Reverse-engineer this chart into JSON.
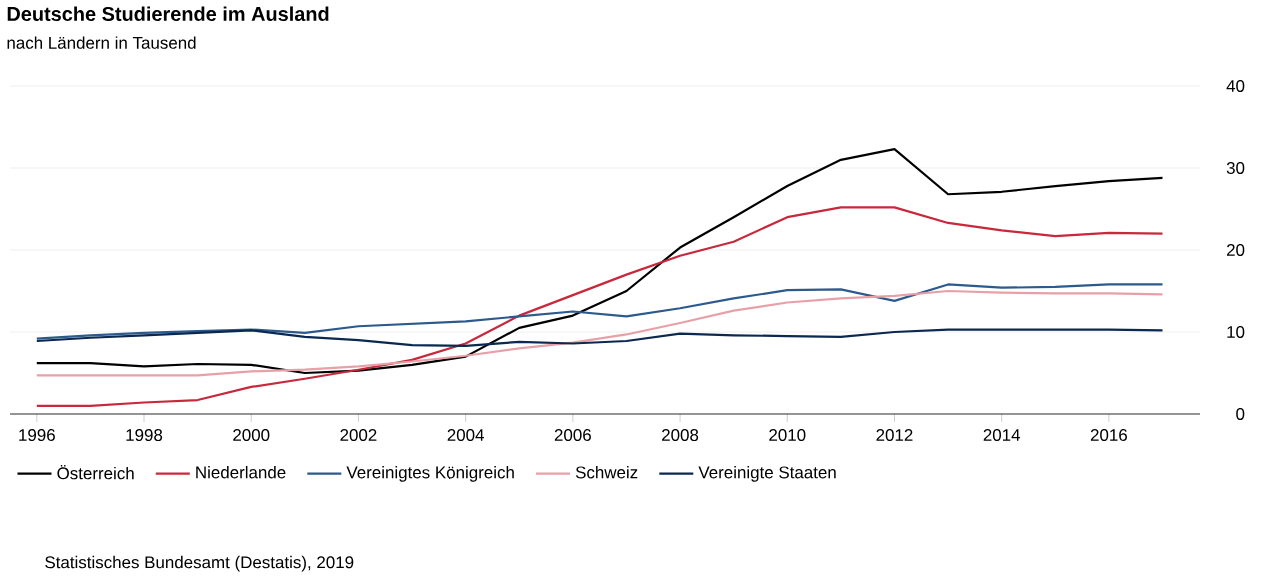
{
  "chart_data": {
    "type": "line",
    "title": "Deutsche Studierende im Ausland",
    "subtitle": "nach Ländern in Tausend",
    "x": [
      1996,
      1997,
      1998,
      1999,
      2000,
      2001,
      2002,
      2003,
      2004,
      2005,
      2006,
      2007,
      2008,
      2009,
      2010,
      2011,
      2012,
      2013,
      2014,
      2015,
      2016,
      2017
    ],
    "series": [
      {
        "name": "Österreich",
        "color": "#000000",
        "values": [
          6.2,
          6.2,
          5.8,
          6.1,
          6.0,
          5.0,
          5.3,
          6.0,
          7.0,
          10.5,
          12.0,
          15.0,
          20.3,
          24.0,
          27.8,
          31.0,
          32.3,
          26.8,
          27.1,
          27.8,
          28.4,
          28.8
        ]
      },
      {
        "name": "Niederlande",
        "color": "#c8283c",
        "values": [
          1.0,
          1.0,
          1.4,
          1.7,
          3.3,
          4.3,
          5.4,
          6.6,
          8.6,
          12.0,
          14.5,
          17.0,
          19.3,
          21.0,
          24.0,
          25.2,
          25.2,
          23.3,
          22.4,
          21.7,
          22.1,
          22.0
        ]
      },
      {
        "name": "Vereinigtes Königreich",
        "color": "#2c5a8c",
        "values": [
          9.2,
          9.6,
          9.9,
          10.1,
          10.3,
          9.9,
          10.7,
          11.0,
          11.3,
          11.9,
          12.5,
          11.9,
          12.9,
          14.1,
          15.1,
          15.2,
          13.8,
          15.8,
          15.4,
          15.5,
          15.8,
          15.8
        ]
      },
      {
        "name": "Schweiz",
        "color": "#e8a0a8",
        "values": [
          4.7,
          4.7,
          4.7,
          4.7,
          5.2,
          5.4,
          5.8,
          6.4,
          7.1,
          8.0,
          8.7,
          9.7,
          11.1,
          12.6,
          13.6,
          14.1,
          14.4,
          15.0,
          14.8,
          14.7,
          14.7,
          14.6
        ]
      },
      {
        "name": "Vereinigte Staaten",
        "color": "#0a2850",
        "values": [
          8.9,
          9.3,
          9.6,
          9.9,
          10.2,
          9.4,
          9.0,
          8.4,
          8.3,
          8.8,
          8.6,
          8.9,
          9.8,
          9.6,
          9.5,
          9.4,
          10.0,
          10.3,
          10.3,
          10.3,
          10.3,
          10.2
        ]
      }
    ],
    "xlim": [
      1995.5,
      2017.7
    ],
    "ylim": [
      0,
      40
    ],
    "xticks": [
      1996,
      1998,
      2000,
      2002,
      2004,
      2006,
      2008,
      2010,
      2012,
      2014,
      2016
    ],
    "yticks": [
      0,
      10,
      20,
      30,
      40
    ],
    "grid": "y",
    "legend": "bottom",
    "marker": "none",
    "line_style": "solid",
    "annotations": [
      "Statistisches Bundesamt (Destatis), 2019"
    ]
  }
}
